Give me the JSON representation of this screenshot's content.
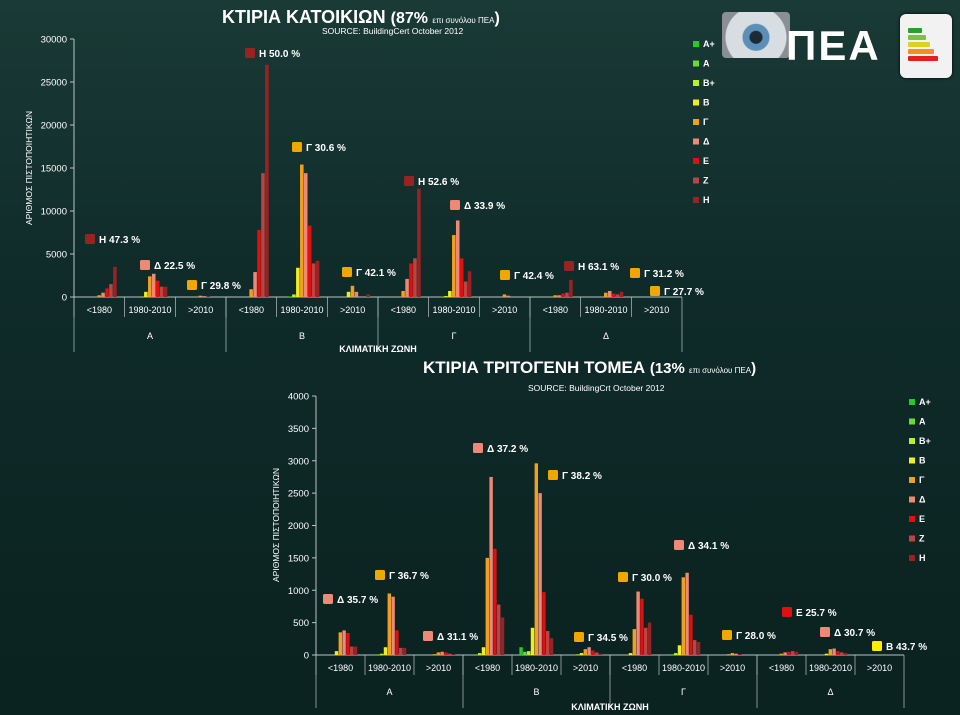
{
  "logo": {
    "text": "ΠΕΑ"
  },
  "chart_data": [
    {
      "type": "bar",
      "title": "ΚΤΙΡΙΑ ΚΑΤΟΙΚΙΩΝ",
      "title_pct": "(87%",
      "title_suffix": "επι συνόλου ΠΕΑ",
      "title_close": ")",
      "subtitle": "SOURCE: BuildingCert October 2012",
      "ylabel": "ΑΡΙΘΜΟΣ ΠΙΣΤΟΠΟΙΗΤΙΚΩΝ",
      "xlabel": "ΚΛΙΜΑΤΙΚΗ ΖΩΝΗ",
      "ylim": [
        0,
        30000
      ],
      "yticks": [
        "0",
        "5000",
        "10000",
        "15000",
        "20000",
        "25000",
        "30000"
      ],
      "zones": [
        "Α",
        "Β",
        "Γ",
        "Δ"
      ],
      "periods": [
        "<1980",
        "1980-2010",
        ">2010"
      ],
      "legend_position": "right",
      "series": [
        {
          "name": "Α+",
          "color": "#22cc22",
          "values": [
            0,
            0,
            0,
            0,
            0,
            0,
            0,
            0,
            0,
            0,
            0,
            0
          ]
        },
        {
          "name": "Α",
          "color": "#66dd33",
          "values": [
            0,
            0,
            0,
            0,
            60,
            0,
            0,
            40,
            0,
            0,
            0,
            0
          ]
        },
        {
          "name": "Β+",
          "color": "#bbee33",
          "values": [
            0,
            60,
            0,
            0,
            300,
            0,
            0,
            120,
            0,
            0,
            0,
            0
          ]
        },
        {
          "name": "Β",
          "color": "#eeee22",
          "values": [
            0,
            600,
            0,
            0,
            3400,
            600,
            0,
            700,
            0,
            0,
            0,
            0
          ]
        },
        {
          "name": "Γ",
          "color": "#f0a020",
          "values": [
            200,
            2400,
            150,
            900,
            15400,
            1300,
            700,
            7200,
            300,
            200,
            500,
            0
          ]
        },
        {
          "name": "Δ",
          "color": "#ee8877",
          "values": [
            500,
            2700,
            100,
            2900,
            14400,
            600,
            2100,
            8900,
            150,
            200,
            700,
            0
          ]
        },
        {
          "name": "Ε",
          "color": "#dd1111",
          "values": [
            1000,
            1900,
            50,
            7800,
            8300,
            0,
            3900,
            4500,
            0,
            400,
            400,
            0
          ]
        },
        {
          "name": "Ζ",
          "color": "#bb4444",
          "values": [
            1500,
            1200,
            0,
            14400,
            3900,
            0,
            4500,
            1800,
            0,
            500,
            300,
            0
          ]
        },
        {
          "name": "Η",
          "color": "#992222",
          "values": [
            3500,
            1200,
            0,
            27000,
            4200,
            300,
            12600,
            3000,
            0,
            2000,
            600,
            0
          ]
        }
      ],
      "annotations": [
        {
          "label": "Η  47.3 %",
          "series": "Η"
        },
        {
          "label": "Δ  22.5 %",
          "series": "Δ"
        },
        {
          "label": "Γ  29.8 %",
          "series": "Γ"
        },
        {
          "label": "Η  50.0 %",
          "series": "Η"
        },
        {
          "label": "Γ  30.6 %",
          "series": "Γ"
        },
        {
          "label": "Γ  42.1 %",
          "series": "Γ"
        },
        {
          "label": "Η  52.6 %",
          "series": "Η"
        },
        {
          "label": "Δ  33.9 %",
          "series": "Δ"
        },
        {
          "label": "Γ  42.4 %",
          "series": "Γ"
        },
        {
          "label": "Η  63.1 %",
          "series": "Η"
        },
        {
          "label": "Γ  31.2 %",
          "series": "Γ"
        },
        {
          "label": "Γ  27.7 %",
          "series": "Γ"
        }
      ]
    },
    {
      "type": "bar",
      "title": "ΚΤΙΡΙΑ ΤΡΙΤΟΓΕΝΗ ΤΟΜΕΑ",
      "title_pct": "(13%",
      "title_suffix": "επι συνόλου ΠΕΑ",
      "title_close": ")",
      "subtitle": "SOURCE: BuildingCrt October 2012",
      "ylabel": "ΑΡΙΘΜΟΣ ΠΙΣΤΟΠΟΙΗΤΙΚΩΝ",
      "xlabel": "ΚΛΙΜΑΤΙΚΗ ΖΩΝΗ",
      "ylim": [
        0,
        4000
      ],
      "yticks": [
        "0",
        "500",
        "1000",
        "1500",
        "2000",
        "2500",
        "3000",
        "3500",
        "4000"
      ],
      "zones": [
        "Α",
        "Β",
        "Γ",
        "Δ"
      ],
      "periods": [
        "<1980",
        "1980-2010",
        ">2010"
      ],
      "legend_position": "right",
      "series": [
        {
          "name": "Α+",
          "color": "#22cc22",
          "values": [
            0,
            0,
            0,
            0,
            120,
            0,
            0,
            0,
            0,
            0,
            0,
            0
          ]
        },
        {
          "name": "Α",
          "color": "#66dd33",
          "values": [
            0,
            10,
            0,
            10,
            50,
            0,
            0,
            10,
            0,
            0,
            0,
            0
          ]
        },
        {
          "name": "Β+",
          "color": "#bbee33",
          "values": [
            0,
            20,
            0,
            30,
            60,
            10,
            0,
            30,
            0,
            0,
            0,
            0
          ]
        },
        {
          "name": "Β",
          "color": "#eeee22",
          "values": [
            60,
            120,
            10,
            120,
            420,
            30,
            30,
            150,
            10,
            0,
            20,
            0
          ]
        },
        {
          "name": "Γ",
          "color": "#f0a020",
          "values": [
            350,
            950,
            40,
            1500,
            2960,
            90,
            400,
            1200,
            30,
            20,
            90,
            0
          ]
        },
        {
          "name": "Δ",
          "color": "#ee8877",
          "values": [
            380,
            900,
            50,
            2750,
            2500,
            120,
            980,
            1270,
            20,
            40,
            100,
            0
          ]
        },
        {
          "name": "Ε",
          "color": "#dd1111",
          "values": [
            340,
            380,
            40,
            1640,
            970,
            70,
            870,
            620,
            10,
            50,
            60,
            0
          ]
        },
        {
          "name": "Ζ",
          "color": "#bb4444",
          "values": [
            130,
            110,
            20,
            780,
            370,
            40,
            420,
            230,
            0,
            60,
            40,
            0
          ]
        },
        {
          "name": "Η",
          "color": "#992222",
          "values": [
            130,
            110,
            10,
            580,
            260,
            20,
            500,
            200,
            0,
            50,
            30,
            0
          ]
        }
      ],
      "annotations": [
        {
          "label": "Δ  35.7 %",
          "series": "Δ"
        },
        {
          "label": "Γ  36.7 %",
          "series": "Γ"
        },
        {
          "label": "Δ  31.1 %",
          "series": "Δ"
        },
        {
          "label": "Δ  37.2 %",
          "series": "Δ"
        },
        {
          "label": "Γ  38.2 %",
          "series": "Γ"
        },
        {
          "label": "Γ  34.5 %",
          "series": "Γ"
        },
        {
          "label": "Γ  30.0 %",
          "series": "Γ"
        },
        {
          "label": "Δ  34.1 %",
          "series": "Δ"
        },
        {
          "label": "Γ  28.0 %",
          "series": "Γ"
        },
        {
          "label": "Ε  25.7 %",
          "series": "Ε"
        },
        {
          "label": "Δ  30.7 %",
          "series": "Δ"
        },
        {
          "label": "Β  43.7 %",
          "series": "Β"
        }
      ]
    }
  ]
}
